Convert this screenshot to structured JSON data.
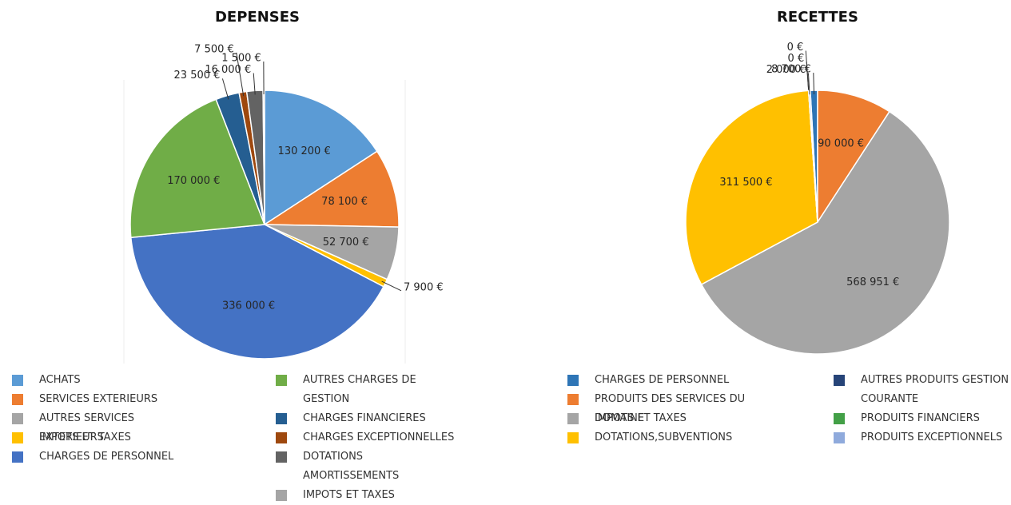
{
  "chart_data": [
    {
      "type": "pie",
      "title": "DEPENSES",
      "categories": [
        "ACHATS",
        "SERVICES EXTERIEURS",
        "AUTRES SERVICES EXTERIEURS",
        "IMPOTS ET TAXES",
        "CHARGES DE PERSONNEL",
        "AUTRES CHARGES DE GESTION",
        "CHARGES FINANCIERES",
        "CHARGES EXCEPTIONNELLES",
        "DOTATIONS AMORTISSEMENTS",
        "IMPOTS ET TAXES"
      ],
      "values": [
        130200,
        78100,
        52700,
        7900,
        336000,
        170000,
        23500,
        7500,
        16000,
        1500
      ],
      "value_labels": [
        "130 200 €",
        "78 100 €",
        "52 700 €",
        "7 900 €",
        "336 000 €",
        "170 000 €",
        "23 500 €",
        "7 500 €",
        "16 000 €",
        "1 500 €"
      ],
      "colors": [
        "#5b9bd5",
        "#ed7d31",
        "#a5a5a5",
        "#ffc000",
        "#4472c4",
        "#70ad47",
        "#255e91",
        "#9e480e",
        "#636363",
        "#a5a5a5"
      ],
      "legend": "bottom"
    },
    {
      "type": "pie",
      "title": "RECETTES",
      "categories": [
        "CHARGES DE PERSONNEL",
        "PRODUITS DES SERVICES DU DOMAINE",
        "IMPOTS ET TAXES",
        "DOTATIONS,SUBVENTIONS",
        "AUTRES PRODUITS GESTION COURANTE",
        "PRODUITS FINANCIERS",
        "PRODUITS EXCEPTIONNELS"
      ],
      "values": [
        8700,
        90000,
        568951,
        311500,
        0,
        0,
        2000
      ],
      "value_labels": [
        "8 700 €",
        "90 000 €",
        "568 951 €",
        "311 500 €",
        "0 €",
        "0 €",
        "2 000 €"
      ],
      "colors": [
        "#2e75b6",
        "#ed7d31",
        "#a5a5a5",
        "#ffc000",
        "#264478",
        "#43a047",
        "#8faadc"
      ],
      "legend": "bottom"
    }
  ]
}
